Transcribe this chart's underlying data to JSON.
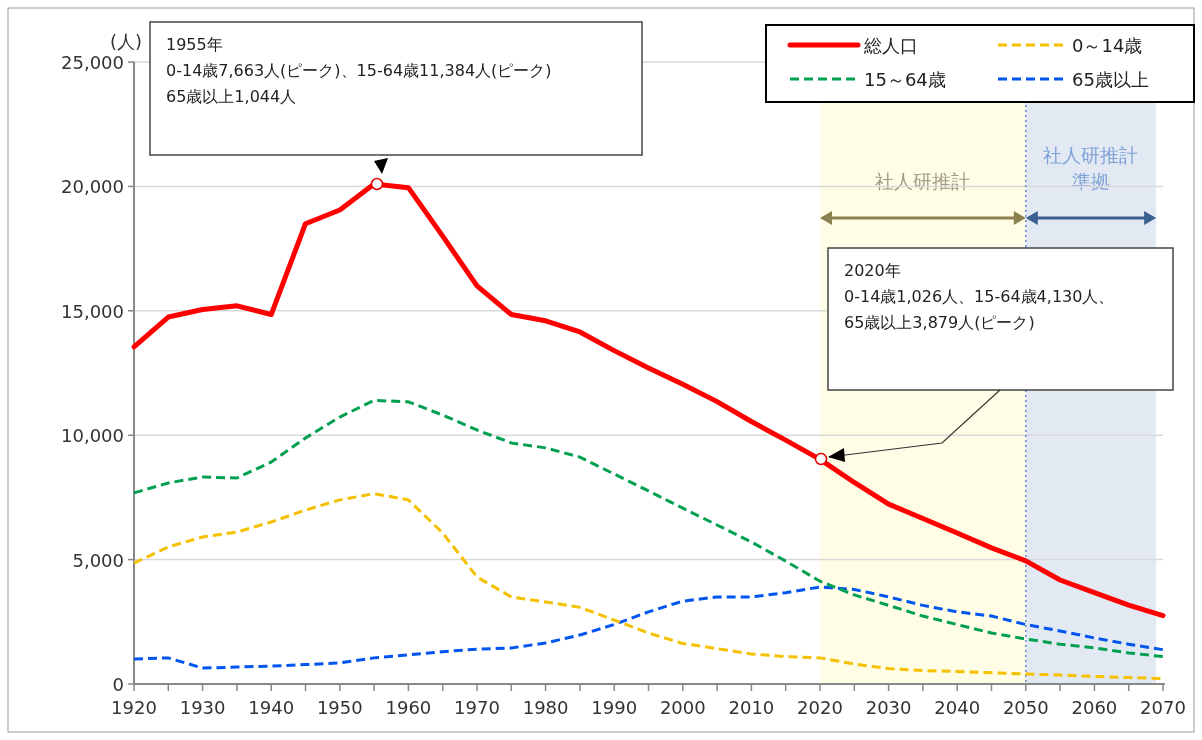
{
  "chart_data": {
    "type": "line",
    "ylabel": "(人)",
    "x": [
      1920,
      1925,
      1930,
      1935,
      1940,
      1945,
      1950,
      1955,
      1960,
      1965,
      1970,
      1975,
      1980,
      1985,
      1990,
      1995,
      2000,
      2005,
      2010,
      2015,
      2020,
      2025,
      2030,
      2035,
      2040,
      2045,
      2050,
      2055,
      2060,
      2065,
      2070
    ],
    "series": [
      {
        "name": "総人口",
        "color": "#ff0000",
        "line_style": "solid",
        "values": [
          13550,
          14750,
          15050,
          15200,
          14850,
          18500,
          19050,
          20100,
          19950,
          18000,
          16000,
          14850,
          14600,
          14150,
          13400,
          12700,
          12050,
          11350,
          10550,
          9800,
          9030,
          8100,
          7230,
          6650,
          6070,
          5470,
          4950,
          4180,
          3670,
          3170,
          2750
        ]
      },
      {
        "name": "0～14歳",
        "color": "#f5c000",
        "line_style": "dashed",
        "values": [
          4860,
          5510,
          5910,
          6110,
          6510,
          6990,
          7400,
          7650,
          7400,
          6070,
          4300,
          3500,
          3300,
          3080,
          2570,
          2050,
          1630,
          1420,
          1210,
          1100,
          1050,
          800,
          620,
          540,
          500,
          450,
          400,
          360,
          300,
          260,
          220
        ]
      },
      {
        "name": "15～64歳",
        "color": "#00a050",
        "line_style": "dashed",
        "values": [
          7680,
          8080,
          8320,
          8280,
          8920,
          9890,
          10730,
          11400,
          11340,
          10810,
          10210,
          9690,
          9490,
          9120,
          8440,
          7760,
          7070,
          6390,
          5710,
          4940,
          4130,
          3580,
          3160,
          2730,
          2390,
          2050,
          1810,
          1600,
          1450,
          1250,
          1100
        ]
      },
      {
        "name": "65歳以上",
        "color": "#0055ee",
        "line_style": "dashed",
        "values": [
          1000,
          1050,
          640,
          680,
          720,
          780,
          850,
          1050,
          1170,
          1300,
          1400,
          1450,
          1650,
          1970,
          2390,
          2900,
          3330,
          3500,
          3500,
          3670,
          3900,
          3800,
          3500,
          3160,
          2900,
          2730,
          2390,
          2130,
          1850,
          1600,
          1380
        ]
      }
    ],
    "xlim": [
      1920,
      2070
    ],
    "xticks": [
      1920,
      {
        "value": 1925,
        "label": null
      },
      1930,
      {
        "value": 1935,
        "label": null
      },
      1940,
      {
        "value": 1945,
        "label": null
      },
      1950,
      {
        "value": 1955,
        "label": null
      },
      1960,
      {
        "value": 1965,
        "label": null
      },
      1970,
      {
        "value": 1975,
        "label": null
      },
      1980,
      {
        "value": 1985,
        "label": null
      },
      1990,
      {
        "value": 1995,
        "label": null
      },
      2000,
      {
        "value": 2005,
        "label": null
      },
      2010,
      {
        "value": 2015,
        "label": null
      },
      2020,
      {
        "value": 2025,
        "label": null
      },
      2030,
      {
        "value": 2035,
        "label": null
      },
      2040,
      {
        "value": 2045,
        "label": null
      },
      2050,
      {
        "value": 2055,
        "label": null
      },
      2060,
      {
        "value": 2065,
        "label": null
      },
      2070
    ],
    "ylim": [
      0,
      25000
    ],
    "yticks": [
      {
        "value": 0,
        "label": "0"
      },
      {
        "value": 5000,
        "label": "5,000"
      },
      {
        "value": 10000,
        "label": "10,000"
      },
      {
        "value": 15000,
        "label": "15,000"
      },
      {
        "value": 20000,
        "label": "20,000"
      },
      {
        "value": 25000,
        "label": "25,000"
      }
    ],
    "bands": [
      {
        "axis": "x",
        "from": 2020,
        "to": 2050,
        "label": "社人研推計",
        "color": "#fffde6"
      },
      {
        "axis": "x",
        "from": 2050,
        "to": 2069,
        "label": "社人研推計準拠",
        "color": "#e3e9f3"
      }
    ],
    "ref_lines": [
      {
        "axis": "x",
        "value": 2050,
        "color": "#4a7ad0",
        "line_style": "dotted"
      }
    ],
    "annotations": [
      "1955年\n0-14歳7,663人(ピーク)、15-64歳11,384人(ピーク)\n65歳以上1,044人",
      "2020年\n0-14歳1,026人、15-64歳4,130人、\n65歳以上3,879人(ピーク)"
    ],
    "grid": "y",
    "legend": "top right",
    "marker": "none"
  }
}
